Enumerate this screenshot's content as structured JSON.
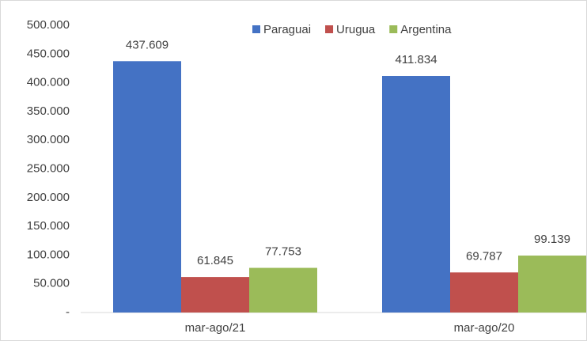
{
  "chart_data": {
    "type": "bar",
    "categories": [
      "mar-ago/21",
      "mar-ago/20"
    ],
    "series": [
      {
        "name": "Paraguai",
        "color": "#4472c4",
        "values": [
          437609,
          411834
        ],
        "value_labels": [
          "437.609",
          "411.834"
        ]
      },
      {
        "name": "Urugua",
        "color": "#c0504d",
        "values": [
          61845,
          69787
        ],
        "value_labels": [
          "61.845",
          "69.787"
        ]
      },
      {
        "name": "Argentina",
        "color": "#9bbb59",
        "values": [
          77753,
          99139
        ],
        "value_labels": [
          "77.753",
          "99.139"
        ]
      }
    ],
    "ylim": [
      0,
      500000
    ],
    "yticks": [
      {
        "value": 0,
        "label": "-"
      },
      {
        "value": 50000,
        "label": "50.000"
      },
      {
        "value": 100000,
        "label": "100.000"
      },
      {
        "value": 150000,
        "label": "150.000"
      },
      {
        "value": 200000,
        "label": "200.000"
      },
      {
        "value": 250000,
        "label": "250.000"
      },
      {
        "value": 300000,
        "label": "300.000"
      },
      {
        "value": 350000,
        "label": "350.000"
      },
      {
        "value": 400000,
        "label": "400.000"
      },
      {
        "value": 450000,
        "label": "450.000"
      },
      {
        "value": 500000,
        "label": "500.000"
      }
    ],
    "grid": false,
    "legend": "top"
  }
}
